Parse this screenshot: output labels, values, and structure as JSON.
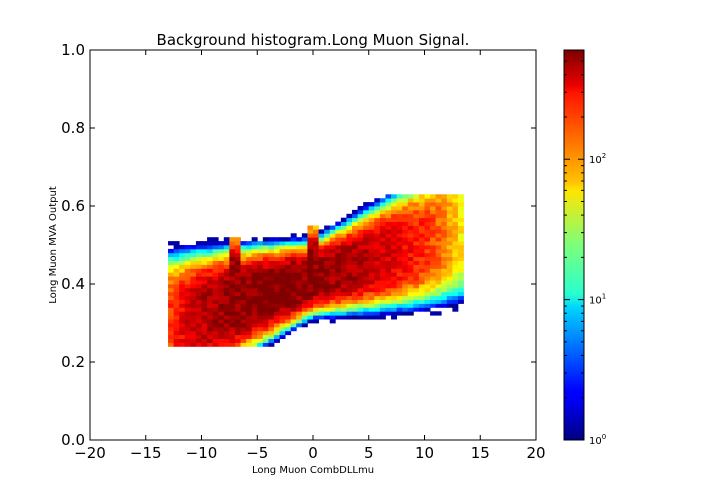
{
  "chart_data": {
    "type": "heatmap",
    "title": "Background histogram.Long Muon Signal.",
    "xlabel": "Long Muon CombDLLmu",
    "ylabel": "Long Muon MVA Output",
    "xlim": [
      -20,
      20
    ],
    "ylim": [
      0.0,
      1.0
    ],
    "x_ticks": [
      "−20",
      "−15",
      "−10",
      "−5",
      "0",
      "5",
      "10",
      "15",
      "20"
    ],
    "x_tick_values": [
      -20,
      -15,
      -10,
      -5,
      0,
      5,
      10,
      15,
      20
    ],
    "y_ticks": [
      "0.0",
      "0.2",
      "0.4",
      "0.6",
      "0.8",
      "1.0"
    ],
    "y_tick_values": [
      0.0,
      0.2,
      0.4,
      0.6,
      0.8,
      1.0
    ],
    "grid": false,
    "colormap": "jet",
    "color_scale": "log",
    "colorbar": {
      "range": [
        1,
        600
      ],
      "ticks": [
        {
          "base": "10",
          "exp": "0",
          "value": 1
        },
        {
          "base": "10",
          "exp": "1",
          "value": 10
        },
        {
          "base": "10",
          "exp": "2",
          "value": 100
        }
      ]
    },
    "bins": {
      "x_range": [
        -13,
        13.5
      ],
      "y_range": [
        0.24,
        0.63
      ],
      "x_bin_width": 0.5,
      "y_bin_width": 0.01
    },
    "distribution": {
      "ridge_intercept": 0.415,
      "ridge_slope": 0.0092,
      "peak_count": 600,
      "spikes": [
        {
          "x": -7,
          "peak_y": 0.44,
          "y_top": 0.52
        },
        {
          "x": 0,
          "peak_y": 0.47,
          "y_top": 0.55
        }
      ]
    }
  }
}
